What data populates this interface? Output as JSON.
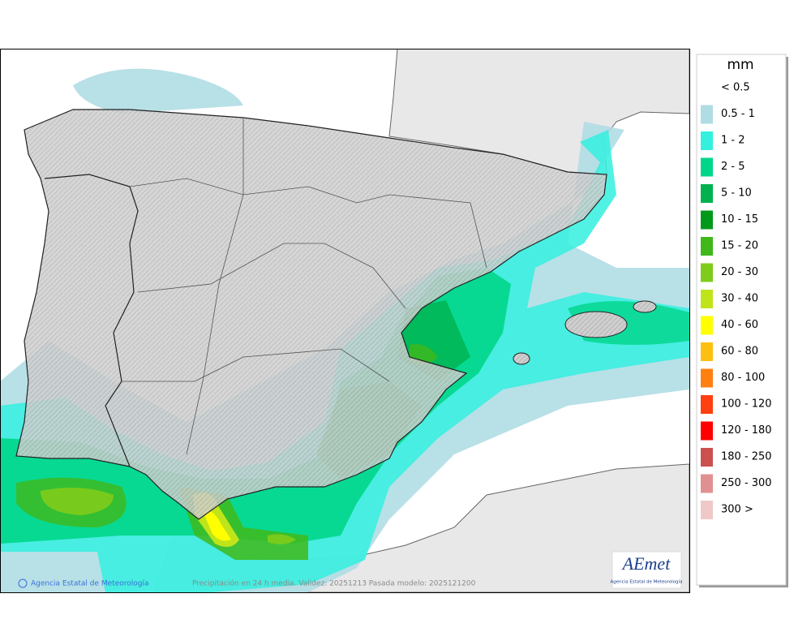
{
  "legend": {
    "unit": "mm",
    "items": [
      {
        "label": "< 0.5",
        "color": null
      },
      {
        "label": "0.5 - 1",
        "color": "#b0dde4"
      },
      {
        "label": "1 - 2",
        "color": "#33f0df"
      },
      {
        "label": "2 - 5",
        "color": "#00d68a"
      },
      {
        "label": "5 - 10",
        "color": "#00b24f"
      },
      {
        "label": "10 - 15",
        "color": "#00991a"
      },
      {
        "label": "15 - 20",
        "color": "#40b81a"
      },
      {
        "label": "20 - 30",
        "color": "#80cc1a"
      },
      {
        "label": "30 - 40",
        "color": "#c0e41a"
      },
      {
        "label": "40 - 60",
        "color": "#ffff00"
      },
      {
        "label": "60 - 80",
        "color": "#ffbf10"
      },
      {
        "label": "80 - 100",
        "color": "#ff8010"
      },
      {
        "label": "100 - 120",
        "color": "#ff4010"
      },
      {
        "label": "120 - 180",
        "color": "#ff0000"
      },
      {
        "label": "180 - 250",
        "color": "#cc5050"
      },
      {
        "label": "250 - 300",
        "color": "#e09090"
      },
      {
        "label": "300 >",
        "color": "#f0c8c8"
      }
    ]
  },
  "footer": {
    "credit": "Agencia Estatal de Meteorología",
    "caption": "Precipitación en 24 h media. Validez: 20251213 Pasada modelo: 2025121200"
  },
  "logo": {
    "name": "AEmet",
    "subtitle": "Agencia Estatal de Meteorología"
  }
}
